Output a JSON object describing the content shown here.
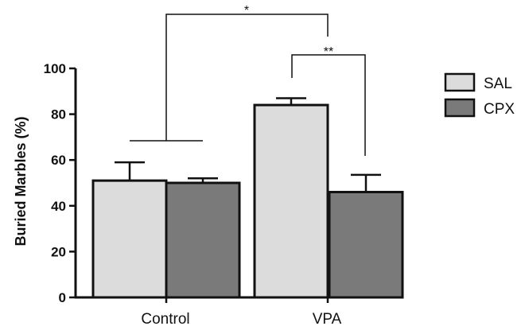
{
  "chart_data": {
    "type": "bar",
    "title": "",
    "xlabel": "",
    "ylabel": "Buried Marbles (%)",
    "ylim": [
      0,
      100
    ],
    "yticks": [
      0,
      20,
      40,
      60,
      80,
      100
    ],
    "categories": [
      "Control",
      "VPA"
    ],
    "series": [
      {
        "name": "SAL",
        "color": "#dcdcdc",
        "values": [
          51,
          84
        ],
        "errors": [
          8,
          3
        ]
      },
      {
        "name": "CPX",
        "color": "#7a7a7a",
        "values": [
          50,
          46
        ],
        "errors": [
          2,
          7.5
        ]
      }
    ],
    "legend_position": "right",
    "grid": false,
    "significance": [
      {
        "label": "*"
      },
      {
        "label": "**"
      }
    ]
  }
}
